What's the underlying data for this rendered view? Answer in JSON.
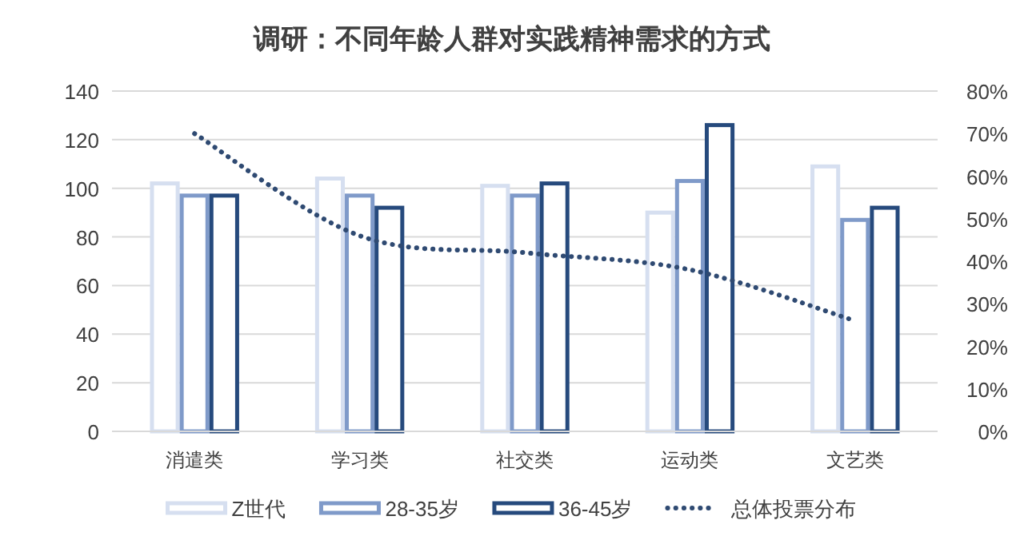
{
  "chart_data": {
    "type": "bar",
    "title": "调研：不同年龄人群对实践精神需求的方式",
    "categories": [
      "消遣类",
      "学习类",
      "社交类",
      "运动类",
      "文艺类"
    ],
    "series": [
      {
        "name": "Z世代",
        "color": "#d6dff0",
        "values": [
          102,
          104,
          101,
          90,
          109
        ]
      },
      {
        "name": "28-35岁",
        "color": "#7f9ac9",
        "values": [
          97,
          97,
          97,
          103,
          87
        ]
      },
      {
        "name": "36-45岁",
        "color": "#264a7d",
        "values": [
          97,
          92,
          102,
          126,
          92
        ]
      },
      {
        "name": "总体投票分布",
        "color": "#2f4a72",
        "type": "line",
        "axis": "y2",
        "line_style": "dotted",
        "values": [
          70,
          46,
          42,
          38,
          26
        ]
      }
    ],
    "ylim": [
      0,
      140
    ],
    "yticks": [
      0,
      20,
      40,
      60,
      80,
      100,
      120,
      140
    ],
    "y2lim": [
      0,
      80
    ],
    "y2ticks": [
      {
        "value": 0,
        "label": "0%"
      },
      {
        "value": 10,
        "label": "10%"
      },
      {
        "value": 20,
        "label": "20%"
      },
      {
        "value": 30,
        "label": "30%"
      },
      {
        "value": 40,
        "label": "40%"
      },
      {
        "value": 50,
        "label": "50%"
      },
      {
        "value": 60,
        "label": "60%"
      },
      {
        "value": 70,
        "label": "70%"
      },
      {
        "value": 80,
        "label": "80%"
      }
    ],
    "grid": "y",
    "legend": "bottom"
  }
}
